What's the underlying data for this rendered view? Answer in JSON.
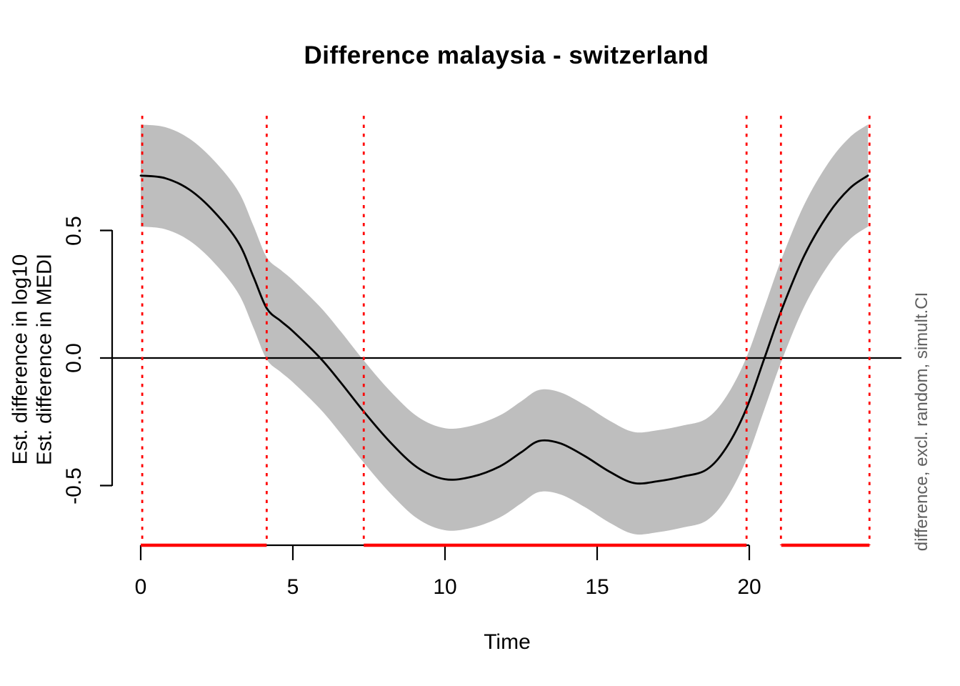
{
  "figure": {
    "title": "Difference malaysia - switzerland",
    "x_axis_label": "Time",
    "y_axis_label_outer": "Est. difference in log10",
    "y_axis_label_inner": "Est. difference in MEDI",
    "right_margin_label": "difference, excl. random, simult.CI"
  },
  "chart_data": {
    "type": "line",
    "title": "Difference malaysia - switzerland",
    "xlabel": "Time",
    "ylabel": [
      "Est. difference in log10",
      "Est. difference in MEDI"
    ],
    "right_label": "difference, excl. random, simult.CI",
    "xlim": [
      0,
      25
    ],
    "ylim": [
      -0.73,
      0.95
    ],
    "grid": false,
    "x_ticks": {
      "values": [
        0,
        5,
        10,
        15,
        20
      ],
      "labels": [
        "0",
        "5",
        "10",
        "15",
        "20"
      ]
    },
    "y_ticks": {
      "values": [
        0.5,
        0.0,
        -0.5
      ],
      "labels": [
        "0.5",
        "0.0",
        "-0.5"
      ]
    },
    "zero_reference_line": 0.0,
    "series": [
      {
        "name": "estimated-difference",
        "x": [
          0,
          0.8,
          1.6,
          2.4,
          3.2,
          3.7,
          4.14,
          4.6,
          5.0,
          5.9,
          6.6,
          7.33,
          8.2,
          9.1,
          10.0,
          10.9,
          11.8,
          12.5,
          13.1,
          13.8,
          14.6,
          15.4,
          16.2,
          17.0,
          17.8,
          18.6,
          19.25,
          19.9,
          20.5,
          21.05,
          21.8,
          22.6,
          23.3,
          23.9
        ],
        "y": [
          0.715,
          0.705,
          0.66,
          0.575,
          0.455,
          0.32,
          0.195,
          0.145,
          0.105,
          0.0,
          -0.1,
          -0.21,
          -0.33,
          -0.43,
          -0.475,
          -0.465,
          -0.425,
          -0.37,
          -0.325,
          -0.335,
          -0.385,
          -0.445,
          -0.49,
          -0.483,
          -0.465,
          -0.437,
          -0.35,
          -0.2,
          0.0,
          0.185,
          0.4,
          0.565,
          0.665,
          0.715
        ]
      }
    ],
    "ci_halfwidth": 0.2,
    "significant_regions_x": [
      [
        0,
        4.14
      ],
      [
        7.33,
        19.91
      ],
      [
        21.05,
        23.95
      ]
    ],
    "dashed_guides_x": [
      0.05,
      4.14,
      7.33,
      19.91,
      21.04,
      23.95
    ],
    "colors": {
      "band": "#BEBEBE",
      "fit_line": "#000000",
      "significance_red": "#FF0000",
      "right_label_gray": "#5F5F5F"
    }
  }
}
